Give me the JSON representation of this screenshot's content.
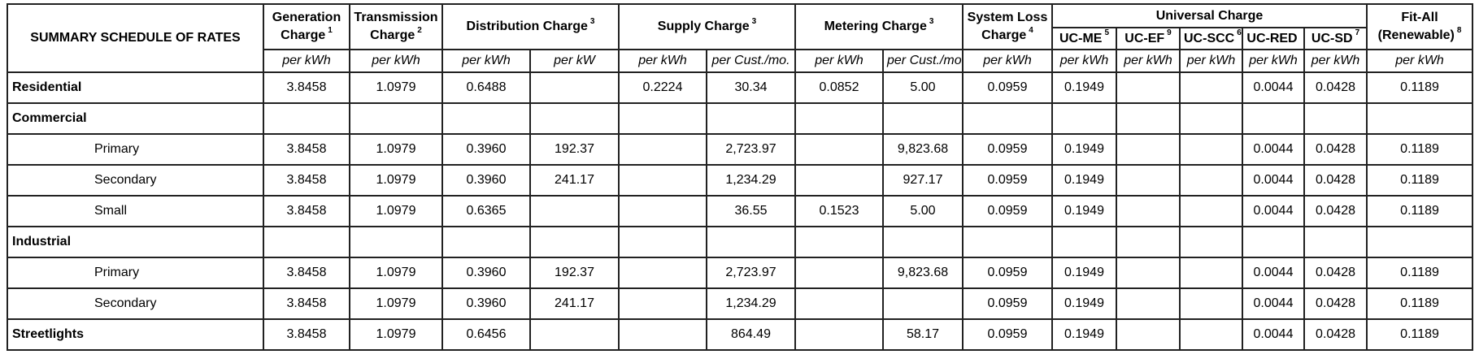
{
  "table": {
    "title": "SUMMARY SCHEDULE OF RATES",
    "columns": {
      "generation": {
        "line1": "Generation",
        "line2": "Charge",
        "sup": "1"
      },
      "transmission": {
        "line1": "Transmission",
        "line2": "Charge",
        "sup": "2"
      },
      "distribution": {
        "label": "Distribution Charge",
        "sup": "3"
      },
      "supply": {
        "label": "Supply Charge",
        "sup": "3"
      },
      "metering": {
        "label": "Metering Charge",
        "sup": "3"
      },
      "system_loss": {
        "line1": "System Loss",
        "line2": "Charge",
        "sup": "4"
      },
      "universal": {
        "label": "Universal Charge"
      },
      "fit_all": {
        "line1": "Fit-All",
        "line2": "(Renewable)",
        "sup": "8"
      }
    },
    "uc_columns": [
      {
        "label": "UC-ME",
        "sup": "5"
      },
      {
        "label": "UC-EF",
        "sup": "9"
      },
      {
        "label": "UC-SCC",
        "sup": "6"
      },
      {
        "label": "UC-RED",
        "sup": ""
      },
      {
        "label": "UC-SD",
        "sup": "7"
      }
    ],
    "column_keys": [
      "generation-per-kwh",
      "transmission-per-kwh",
      "distribution-per-kwh",
      "distribution-per-kw",
      "supply-per-kwh",
      "supply-per-cust-mo",
      "metering-per-kwh",
      "metering-per-cust-mo",
      "system-loss-per-kwh",
      "uc-me",
      "uc-ef",
      "uc-scc",
      "uc-red",
      "uc-sd",
      "fit-all"
    ],
    "units": [
      "per kWh",
      "per kWh",
      "per kWh",
      "per kW",
      "per kWh",
      "per Cust./mo.",
      "per kWh",
      "per Cust./mo.",
      "per kWh",
      "per kWh",
      "per kWh",
      "per kWh",
      "per kWh",
      "per kWh",
      "per kWh"
    ],
    "rows": [
      {
        "label": "Residential",
        "type": "cat",
        "values": [
          "3.8458",
          "1.0979",
          "0.6488",
          "",
          "0.2224",
          "30.34",
          "0.0852",
          "5.00",
          "0.0959",
          "0.1949",
          "",
          "",
          "0.0044",
          "0.0428",
          "0.1189"
        ]
      },
      {
        "label": "Commercial",
        "type": "cat",
        "values": [
          "",
          "",
          "",
          "",
          "",
          "",
          "",
          "",
          "",
          "",
          "",
          "",
          "",
          "",
          ""
        ]
      },
      {
        "label": "Primary",
        "type": "sub",
        "values": [
          "3.8458",
          "1.0979",
          "0.3960",
          "192.37",
          "",
          "2,723.97",
          "",
          "9,823.68",
          "0.0959",
          "0.1949",
          "",
          "",
          "0.0044",
          "0.0428",
          "0.1189"
        ]
      },
      {
        "label": "Secondary",
        "type": "sub",
        "values": [
          "3.8458",
          "1.0979",
          "0.3960",
          "241.17",
          "",
          "1,234.29",
          "",
          "927.17",
          "0.0959",
          "0.1949",
          "",
          "",
          "0.0044",
          "0.0428",
          "0.1189"
        ]
      },
      {
        "label": "Small",
        "type": "sub",
        "values": [
          "3.8458",
          "1.0979",
          "0.6365",
          "",
          "",
          "36.55",
          "0.1523",
          "5.00",
          "0.0959",
          "0.1949",
          "",
          "",
          "0.0044",
          "0.0428",
          "0.1189"
        ]
      },
      {
        "label": "Industrial",
        "type": "cat",
        "values": [
          "",
          "",
          "",
          "",
          "",
          "",
          "",
          "",
          "",
          "",
          "",
          "",
          "",
          "",
          ""
        ]
      },
      {
        "label": "Primary",
        "type": "sub",
        "values": [
          "3.8458",
          "1.0979",
          "0.3960",
          "192.37",
          "",
          "2,723.97",
          "",
          "9,823.68",
          "0.0959",
          "0.1949",
          "",
          "",
          "0.0044",
          "0.0428",
          "0.1189"
        ]
      },
      {
        "label": "Secondary",
        "type": "sub",
        "values": [
          "3.8458",
          "1.0979",
          "0.3960",
          "241.17",
          "",
          "1,234.29",
          "",
          "",
          "0.0959",
          "0.1949",
          "",
          "",
          "0.0044",
          "0.0428",
          "0.1189"
        ]
      },
      {
        "label": "Streetlights",
        "type": "cat",
        "values": [
          "3.8458",
          "1.0979",
          "0.6456",
          "",
          "",
          "864.49",
          "",
          "58.17",
          "0.0959",
          "0.1949",
          "",
          "",
          "0.0044",
          "0.0428",
          "0.1189"
        ]
      }
    ],
    "colors": {
      "border": "#212121",
      "text": "#000000",
      "background": "#ffffff"
    }
  }
}
